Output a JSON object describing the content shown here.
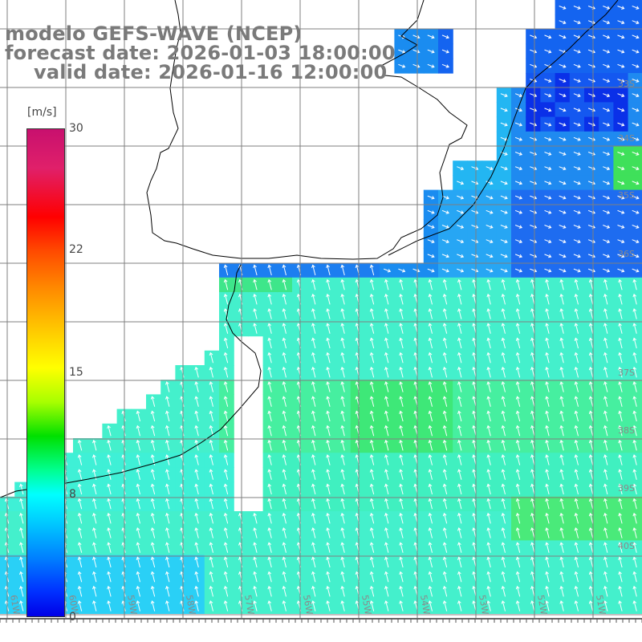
{
  "title": {
    "line1": "modelo GEFS-WAVE (NCEP)",
    "line2": "forecast date: 2026-01-03 18:00:00",
    "line3": "valid date: 2026-01-16 12:00:00"
  },
  "colorbar": {
    "unit": "[m/s]",
    "ticks": [
      "30",
      "22",
      "15",
      "8",
      "0"
    ]
  },
  "lon_labels": [
    "61W",
    "60W",
    "59W",
    "58W",
    "57W",
    "56W",
    "55W",
    "54W",
    "53W",
    "52W",
    "51W"
  ],
  "lat_labels": [
    "33S",
    "34S",
    "35S",
    "36S",
    "37S",
    "38S",
    "39S",
    "40S"
  ],
  "colors": {
    "land": "#ffffff",
    "grid": "#7f7f7f",
    "coast": "#000000",
    "arrows": "#ffffff",
    "title": "#7a7a7a"
  }
}
